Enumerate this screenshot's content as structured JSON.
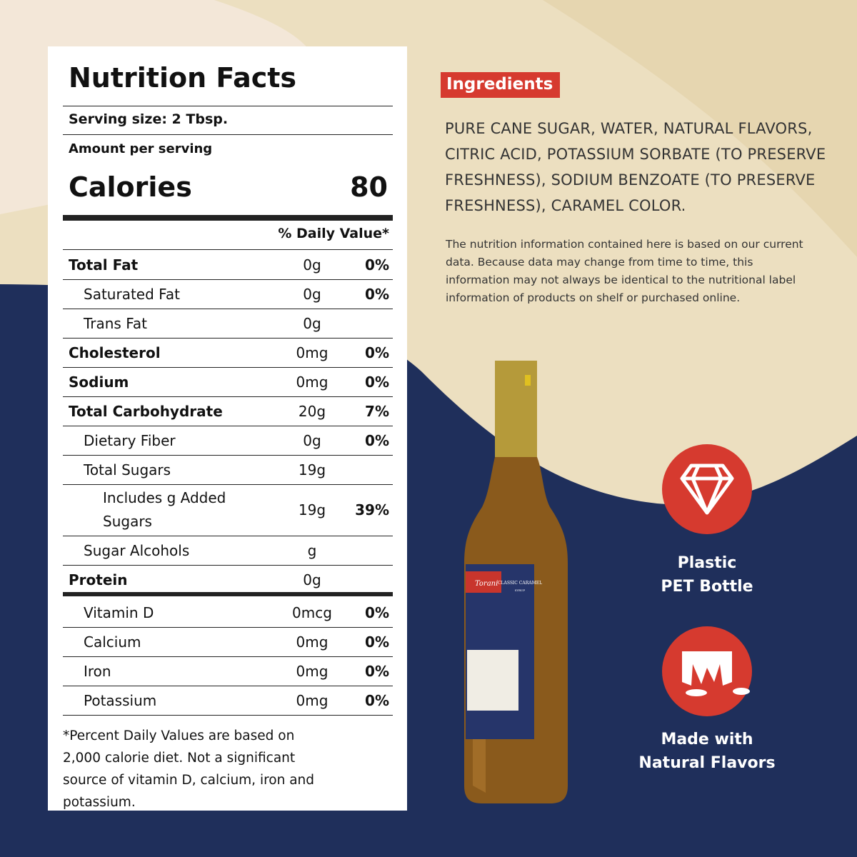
{
  "nutrition": {
    "title": "Nutrition Facts",
    "serving_size": "Serving size: 2 Tbsp.",
    "amount_per_serving": "Amount per serving",
    "calories_label": "Calories",
    "calories_value": "80",
    "daily_value_header": "% Daily Value*",
    "rows": [
      [
        "Total Fat",
        "0g",
        "0%"
      ],
      [
        "Saturated Fat",
        "0g",
        "0%"
      ],
      [
        "Trans Fat",
        "0g",
        null
      ],
      [
        "Cholesterol",
        "0mg",
        "0%"
      ],
      [
        "Sodium",
        "0mg",
        "0%"
      ],
      [
        "Total Carbohydrate",
        "20g",
        "7%"
      ],
      [
        "Dietary Fiber",
        "0g",
        "0%"
      ],
      [
        "Total Sugars",
        "19g",
        null
      ],
      [
        "Includes g Added Sugars",
        "19g",
        "39%"
      ],
      [
        "Sugar Alcohols",
        "g",
        null
      ],
      [
        "Protein",
        "0g",
        null
      ]
    ],
    "vitamins": [
      [
        "Vitamin D",
        "0mcg",
        "0%"
      ],
      [
        "Calcium",
        "0mg",
        "0%"
      ],
      [
        "Iron",
        "0mg",
        "0%"
      ],
      [
        "Potassium",
        "0mg",
        "0%"
      ]
    ],
    "footnote": "*Percent Daily Values are based on 2,000 calorie diet. Not a significant source of vitamin D, calcium, iron and potassium."
  },
  "ingredients": {
    "title": "Ingredients",
    "text": "PURE CANE SUGAR, WATER, NATURAL FLAVORS, CITRIC ACID, POTASSIUM SORBATE (TO PRESERVE FRESHNESS), SODIUM BENZOATE (TO PRESERVE FRESHNESS), CARAMEL COLOR.",
    "note": "The nutrition information contained here is based on our current data. Because data may change from time to time, this information may not always be identical to the nutritional label information of products on shelf or purchased online."
  },
  "bottle": {
    "brand": "Torani",
    "flavor": "CLASSIC CARAMEL",
    "kind": "SYRUP"
  },
  "badges": [
    {
      "lines": [
        "Plastic",
        "PET Bottle"
      ]
    },
    {
      "lines": [
        "Made with",
        "Natural Flavors"
      ]
    }
  ]
}
